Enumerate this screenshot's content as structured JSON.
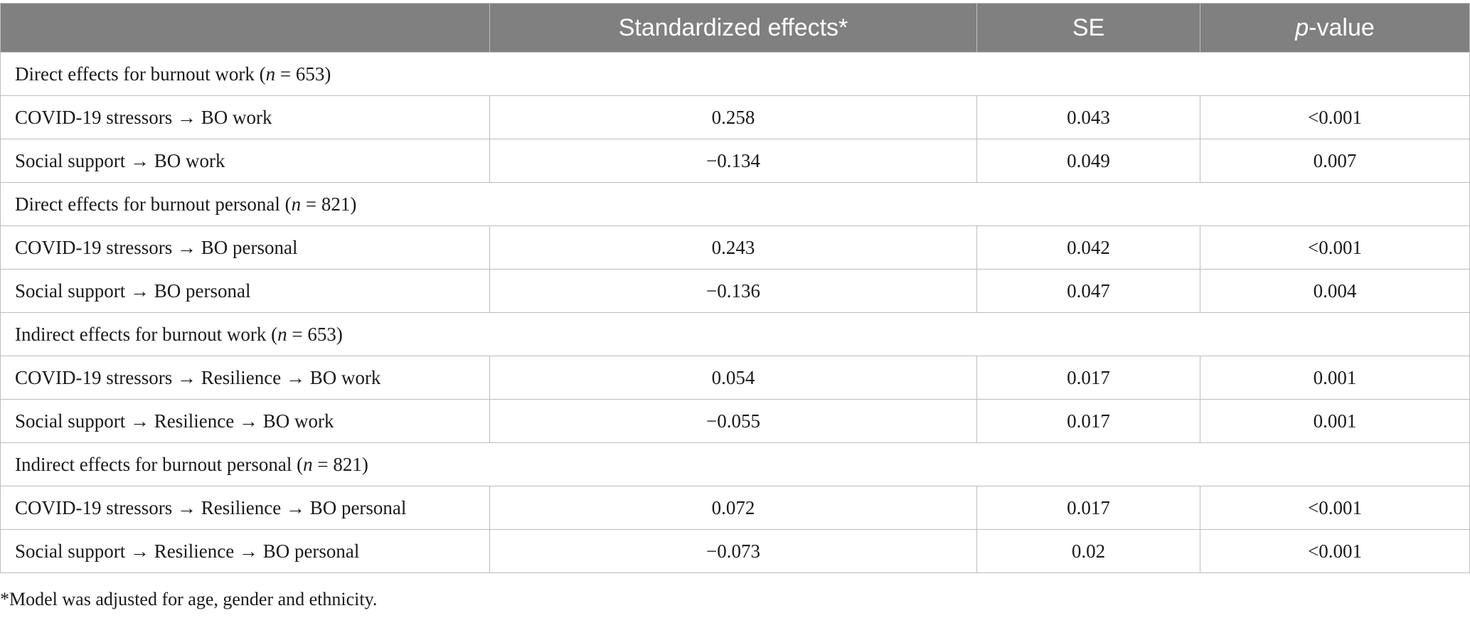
{
  "header": {
    "col_label": "",
    "col_effects": "Standardized effects*",
    "col_se": "SE",
    "col_p_italic": "p",
    "col_p_rest": "-value"
  },
  "sections": [
    {
      "title_prefix": "Direct effects for burnout work (",
      "n_symbol": "n",
      "n_value": " = 653)",
      "rows": [
        {
          "label": "COVID-19 stressors → BO work",
          "effect": "0.258",
          "se": "0.043",
          "p": "<0.001"
        },
        {
          "label": "Social support → BO work",
          "effect": "−0.134",
          "se": "0.049",
          "p": "0.007"
        }
      ]
    },
    {
      "title_prefix": "Direct effects for burnout personal (",
      "n_symbol": "n",
      "n_value": " = 821)",
      "rows": [
        {
          "label": "COVID-19 stressors → BO personal",
          "effect": "0.243",
          "se": "0.042",
          "p": "<0.001"
        },
        {
          "label": "Social support → BO personal",
          "effect": "−0.136",
          "se": "0.047",
          "p": "0.004"
        }
      ]
    },
    {
      "title_prefix": "Indirect effects for burnout work (",
      "n_symbol": "n",
      "n_value": " = 653)",
      "rows": [
        {
          "label": "COVID-19 stressors → Resilience → BO work",
          "effect": "0.054",
          "se": "0.017",
          "p": "0.001"
        },
        {
          "label": "Social support → Resilience → BO work",
          "effect": "−0.055",
          "se": "0.017",
          "p": "0.001"
        }
      ]
    },
    {
      "title_prefix": "Indirect effects for burnout personal (",
      "n_symbol": "n",
      "n_value": " = 821)",
      "rows": [
        {
          "label": "COVID-19 stressors → Resilience → BO personal",
          "effect": "0.072",
          "se": "0.017",
          "p": "<0.001"
        },
        {
          "label": "Social support → Resilience → BO personal",
          "effect": "−0.073",
          "se": "0.02",
          "p": "<0.001"
        }
      ]
    }
  ],
  "footnote": "*Model was adjusted for age, gender and ethnicity."
}
